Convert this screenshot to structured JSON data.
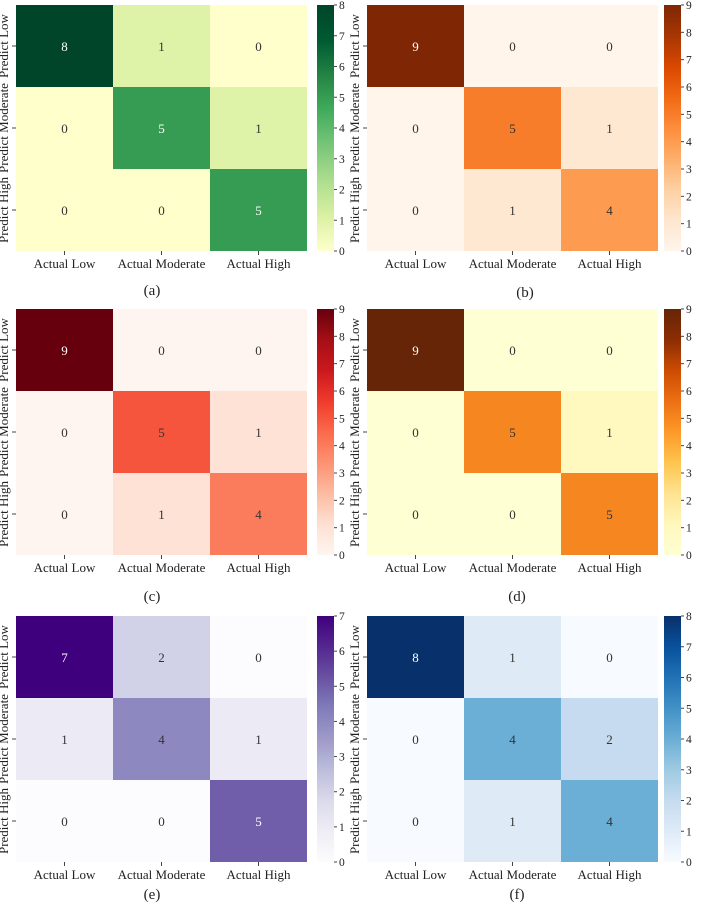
{
  "chart_data": [
    {
      "type": "heatmap",
      "panel_label": "(a)",
      "colormap": "Greens",
      "x_categories": [
        "Actual Low",
        "Actual Moderate",
        "Actual High"
      ],
      "y_categories": [
        "Predict Low",
        "Predict Moderate",
        "Predict High"
      ],
      "values": [
        [
          8,
          1,
          0
        ],
        [
          0,
          5,
          1
        ],
        [
          0,
          0,
          5
        ]
      ],
      "vmin": 0,
      "vmax": 8,
      "colorbar_ticks": [
        "0",
        "1",
        "2",
        "3",
        "4",
        "5",
        "6",
        "7",
        "8"
      ]
    },
    {
      "type": "heatmap",
      "panel_label": "(b)",
      "colormap": "Oranges",
      "x_categories": [
        "Actual Low",
        "Actual Moderate",
        "Actual High"
      ],
      "y_categories": [
        "Predict Low",
        "Predict Moderate",
        "Predict High"
      ],
      "values": [
        [
          9,
          0,
          0
        ],
        [
          0,
          5,
          1
        ],
        [
          0,
          1,
          4
        ]
      ],
      "vmin": 0,
      "vmax": 9,
      "colorbar_ticks": [
        "0",
        "1",
        "2",
        "3",
        "4",
        "5",
        "6",
        "7",
        "8",
        "9"
      ]
    },
    {
      "type": "heatmap",
      "panel_label": "(c)",
      "colormap": "Reds",
      "x_categories": [
        "Actual Low",
        "Actual Moderate",
        "Actual High"
      ],
      "y_categories": [
        "Predict Low",
        "Predict Moderate",
        "Predict High"
      ],
      "values": [
        [
          9,
          0,
          0
        ],
        [
          0,
          5,
          1
        ],
        [
          0,
          1,
          4
        ]
      ],
      "vmin": 0,
      "vmax": 9,
      "colorbar_ticks": [
        "0",
        "1",
        "2",
        "3",
        "4",
        "5",
        "6",
        "7",
        "8",
        "9"
      ]
    },
    {
      "type": "heatmap",
      "panel_label": "(d)",
      "colormap": "YlOrBr",
      "x_categories": [
        "Actual Low",
        "Actual Moderate",
        "Actual High"
      ],
      "y_categories": [
        "Predict Low",
        "Predict Moderate",
        "Predict High"
      ],
      "values": [
        [
          9,
          0,
          0
        ],
        [
          0,
          5,
          1
        ],
        [
          0,
          0,
          5
        ]
      ],
      "vmin": 0,
      "vmax": 9,
      "colorbar_ticks": [
        "0",
        "1",
        "2",
        "3",
        "4",
        "5",
        "6",
        "7",
        "8",
        "9"
      ]
    },
    {
      "type": "heatmap",
      "panel_label": "(e)",
      "colormap": "Purples",
      "x_categories": [
        "Actual Low",
        "Actual Moderate",
        "Actual High"
      ],
      "y_categories": [
        "Predict Low",
        "Predict Moderate",
        "Predict High"
      ],
      "values": [
        [
          7,
          2,
          0
        ],
        [
          1,
          4,
          1
        ],
        [
          0,
          0,
          5
        ]
      ],
      "vmin": 0,
      "vmax": 7,
      "colorbar_ticks": [
        "0",
        "1",
        "2",
        "3",
        "4",
        "5",
        "6",
        "7"
      ]
    },
    {
      "type": "heatmap",
      "panel_label": "(f)",
      "colormap": "Blues",
      "x_categories": [
        "Actual Low",
        "Actual Moderate",
        "Actual High"
      ],
      "y_categories": [
        "Predict Low",
        "Predict Moderate",
        "Predict High"
      ],
      "values": [
        [
          8,
          1,
          0
        ],
        [
          0,
          4,
          2
        ],
        [
          0,
          1,
          4
        ]
      ],
      "vmin": 0,
      "vmax": 8,
      "colorbar_ticks": [
        "0",
        "1",
        "2",
        "3",
        "4",
        "5",
        "6",
        "7",
        "8"
      ]
    }
  ],
  "colormaps": {
    "Greens": [
      "#f7fcf5",
      "#e5f5e0",
      "#c7e9c0",
      "#a1d99b",
      "#74c476",
      "#41ab5d",
      "#238b45",
      "#006d2c",
      "#00441b"
    ],
    "Oranges": [
      "#fff5eb",
      "#fee6ce",
      "#fdd0a2",
      "#fdae6b",
      "#fd8d3c",
      "#f16913",
      "#d94801",
      "#a63603",
      "#7f2704"
    ],
    "Reds": [
      "#fff5f0",
      "#fee0d2",
      "#fcbba1",
      "#fc9272",
      "#fb6a4a",
      "#ef3b2c",
      "#cb181d",
      "#a50f15",
      "#67000d"
    ],
    "YlOrBr": [
      "#ffffe5",
      "#fff7bc",
      "#fee391",
      "#fec44f",
      "#fe9929",
      "#ec7014",
      "#cc4c02",
      "#993404",
      "#662506"
    ],
    "Purples": [
      "#fcfbfd",
      "#efedf5",
      "#dadaeb",
      "#bcbddc",
      "#9e9ac8",
      "#807dba",
      "#6a51a3",
      "#54278f",
      "#3f007d"
    ],
    "Blues": [
      "#f7fbff",
      "#deebf7",
      "#c6dbef",
      "#9ecae1",
      "#6baed6",
      "#4292c6",
      "#2171b5",
      "#08519c",
      "#08306b"
    ]
  },
  "colormap_display": {
    "Greens": [
      "#ffffcc",
      "#d9f0a3",
      "#addd8e",
      "#78c679",
      "#41ab5d",
      "#238443",
      "#005a32",
      "#004529"
    ],
    "YlOrBr": [
      "#ffffd4",
      "#fff7bc",
      "#fee391",
      "#fec44f",
      "#fe9929",
      "#ec7014",
      "#cc4c02",
      "#8c2d04",
      "#662506"
    ]
  },
  "text_colors": {
    "light": "#ffffff",
    "dark": "#333333"
  }
}
